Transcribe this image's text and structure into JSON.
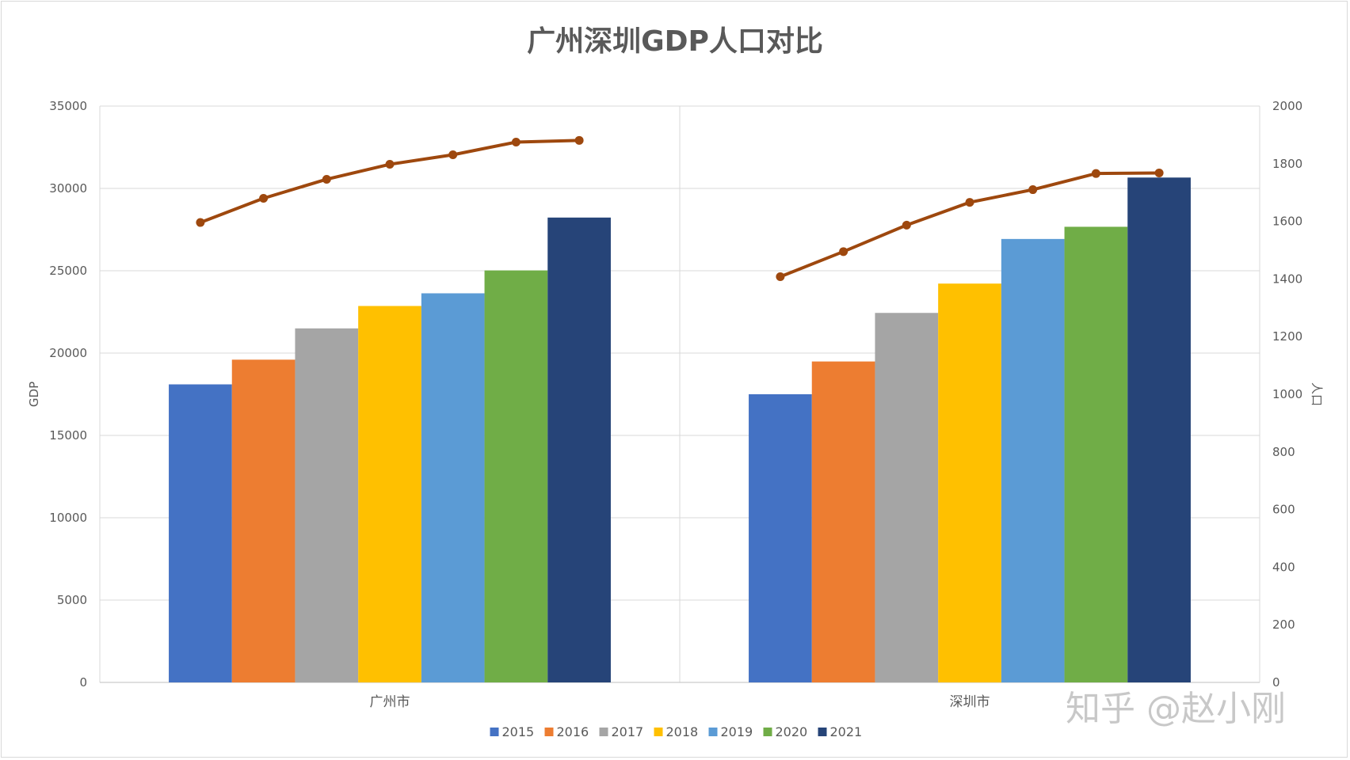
{
  "chart_data": {
    "type": "bar",
    "title": "广州深圳GDP人口对比",
    "categories": [
      "广州市",
      "深圳市"
    ],
    "ylabel": "GDP",
    "y2label": "人口",
    "ylim": [
      0,
      35000
    ],
    "y2lim": [
      0,
      2000
    ],
    "yticks": [
      "0",
      "5000",
      "10000",
      "15000",
      "20000",
      "25000",
      "30000",
      "35000"
    ],
    "y2ticks": [
      "0",
      "200",
      "400",
      "600",
      "800",
      "1000",
      "1200",
      "1400",
      "1600",
      "1800",
      "2000"
    ],
    "grid": true,
    "legend_position": "bottom",
    "series": [
      {
        "name": "2015",
        "color": "#4472C4",
        "values": [
          18100,
          17500
        ]
      },
      {
        "name": "2016",
        "color": "#ED7D31",
        "values": [
          19600,
          19490
        ]
      },
      {
        "name": "2017",
        "color": "#A5A5A5",
        "values": [
          21500,
          22440
        ]
      },
      {
        "name": "2018",
        "color": "#FFC000",
        "values": [
          22860,
          24220
        ]
      },
      {
        "name": "2019",
        "color": "#5B9BD5",
        "values": [
          23630,
          26930
        ]
      },
      {
        "name": "2020",
        "color": "#70AD47",
        "values": [
          25020,
          27670
        ]
      },
      {
        "name": "2021",
        "color": "#264478",
        "values": [
          28230,
          30660
        ]
      }
    ],
    "population_line": {
      "color": "#9E480E",
      "values": [
        [
          1596,
          1680,
          1746,
          1798,
          1831,
          1875,
          1881
        ],
        [
          1408,
          1495,
          1587,
          1666,
          1710,
          1766,
          1768
        ]
      ]
    }
  },
  "watermark": "知乎 @赵小刚"
}
